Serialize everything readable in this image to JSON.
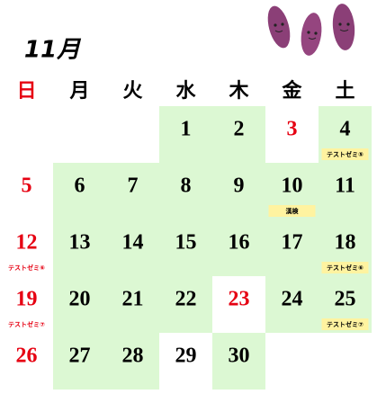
{
  "title": "11月",
  "weekdays": [
    "日",
    "月",
    "火",
    "水",
    "木",
    "金",
    "土"
  ],
  "weeks": [
    [
      null,
      null,
      null,
      {
        "day": 1,
        "highlight": true
      },
      {
        "day": 2,
        "highlight": true
      },
      {
        "day": 3,
        "holiday": true
      },
      {
        "day": 4,
        "highlight": true,
        "note": "テストゼミ⑤"
      }
    ],
    [
      {
        "day": 5,
        "holiday": true
      },
      {
        "day": 6,
        "highlight": true
      },
      {
        "day": 7,
        "highlight": true
      },
      {
        "day": 8,
        "highlight": true
      },
      {
        "day": 9,
        "highlight": true
      },
      {
        "day": 10,
        "highlight": true,
        "note": "漢検"
      },
      {
        "day": 11,
        "highlight": true
      }
    ],
    [
      {
        "day": 12,
        "holiday": true,
        "note": "テストゼミ⑥"
      },
      {
        "day": 13,
        "highlight": true
      },
      {
        "day": 14,
        "highlight": true
      },
      {
        "day": 15,
        "highlight": true
      },
      {
        "day": 16,
        "highlight": true
      },
      {
        "day": 17,
        "highlight": true
      },
      {
        "day": 18,
        "highlight": true,
        "note": "テストゼミ⑥"
      }
    ],
    [
      {
        "day": 19,
        "holiday": true,
        "note": "テストゼミ⑦"
      },
      {
        "day": 20,
        "highlight": true
      },
      {
        "day": 21,
        "highlight": true
      },
      {
        "day": 22,
        "highlight": true
      },
      {
        "day": 23,
        "holiday": true
      },
      {
        "day": 24,
        "highlight": true
      },
      {
        "day": 25,
        "highlight": true,
        "note": "テストゼミ⑦"
      }
    ],
    [
      {
        "day": 26,
        "holiday": true
      },
      {
        "day": 27,
        "highlight": true
      },
      {
        "day": 28,
        "highlight": true
      },
      {
        "day": 29
      },
      {
        "day": 30,
        "highlight": true
      },
      null,
      null
    ]
  ]
}
